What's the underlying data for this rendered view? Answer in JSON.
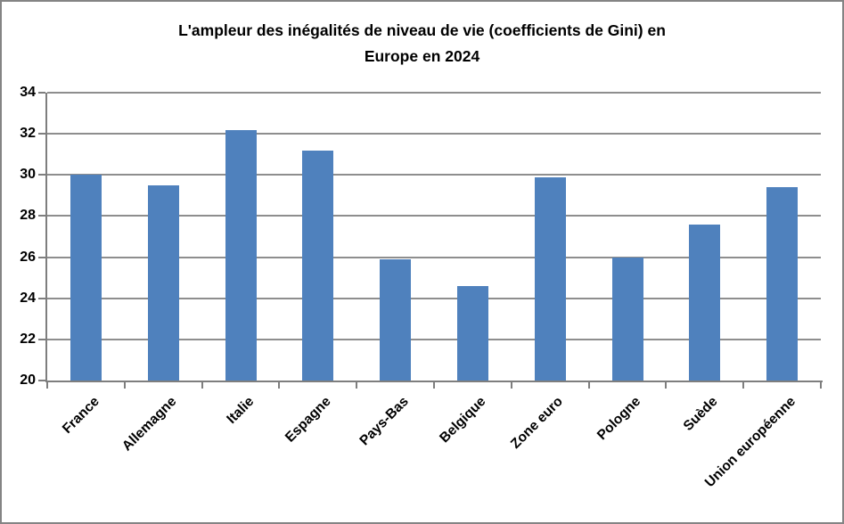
{
  "chart_data": {
    "type": "bar",
    "title": "L'ampleur des inégalités de niveau de vie (coefficients de Gini) en Europe en 2024",
    "title_lines": [
      "L'ampleur des inégalités de niveau de vie (coefficients de Gini) en",
      "Europe en 2024"
    ],
    "categories": [
      "France",
      "Allemagne",
      "Italie",
      "Espagne",
      "Pays-Bas",
      "Belgique",
      "Zone euro",
      "Pologne",
      "Suède",
      "Union européenne"
    ],
    "values": [
      30.0,
      29.5,
      32.2,
      31.2,
      25.9,
      24.6,
      29.9,
      26.0,
      27.6,
      29.4
    ],
    "xlabel": "",
    "ylabel": "",
    "ylim": [
      20,
      34
    ],
    "ytick_step": 2,
    "ytick_labels": [
      "20",
      "22",
      "24",
      "26",
      "28",
      "30",
      "32",
      "34"
    ],
    "grid": true,
    "legend": false,
    "colors": {
      "bar_fill": "#4F81BD",
      "gridline": "#8E8E8E",
      "axis": "#7E7E7E",
      "text": "#000000",
      "frame_border": "#848484",
      "background": "#FFFFFF"
    }
  }
}
